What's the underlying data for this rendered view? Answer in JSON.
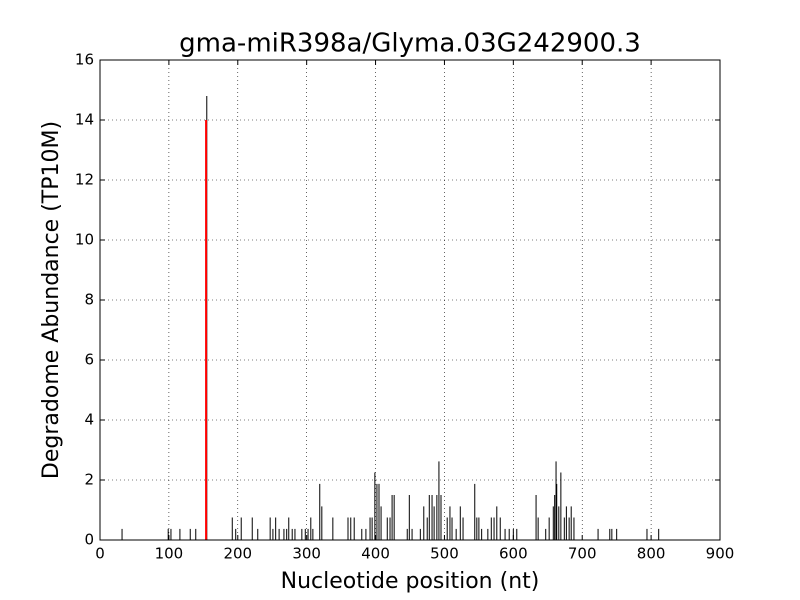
{
  "chart_data": {
    "type": "stem",
    "title": "gma-miR398a/Glyma.03G242900.3",
    "x_label": "Nucleotide position (nt)",
    "y_label": "Degradome Abundance (TP10M)",
    "xlim": [
      0,
      900
    ],
    "xticks": [
      0,
      100,
      200,
      300,
      400,
      500,
      600,
      700,
      800,
      900
    ],
    "ylim": [
      0,
      16
    ],
    "yticks": [
      0,
      2,
      4,
      6,
      8,
      10,
      12,
      14,
      16
    ],
    "grid": true,
    "series": [
      {
        "color": "#000000",
        "x": [
          32,
          99,
          103,
          116,
          131,
          139,
          155,
          192,
          197,
          205,
          221,
          229,
          247,
          251,
          255,
          260,
          267,
          271,
          274,
          279,
          283,
          293,
          298,
          302,
          306,
          309,
          319,
          322,
          338,
          360,
          364,
          369,
          380,
          386,
          392,
          395,
          399,
          402,
          405,
          408,
          417,
          421,
          424,
          427,
          446,
          449,
          453,
          465,
          470,
          475,
          478,
          482,
          485,
          489,
          492,
          495,
          504,
          508,
          511,
          517,
          523,
          527,
          544,
          547,
          550,
          554,
          563,
          568,
          572,
          576,
          581,
          588,
          594,
          600,
          605,
          633,
          636,
          647,
          652,
          658,
          660,
          662,
          663,
          666,
          669,
          674,
          677,
          681,
          684,
          688,
          723,
          740,
          743,
          750,
          794,
          811
        ],
        "values": [
          0.37,
          0.37,
          0.37,
          0.37,
          0.37,
          0.37,
          14.8,
          0.75,
          0.37,
          0.75,
          0.75,
          0.37,
          0.75,
          0.37,
          0.75,
          0.37,
          0.37,
          0.37,
          0.75,
          0.37,
          0.37,
          0.37,
          0.37,
          0.37,
          0.75,
          0.37,
          1.87,
          1.12,
          0.75,
          0.75,
          0.75,
          0.75,
          0.37,
          0.37,
          0.75,
          0.75,
          2.25,
          1.87,
          1.87,
          1.12,
          0.75,
          0.75,
          1.5,
          1.5,
          0.37,
          1.5,
          0.37,
          0.37,
          1.12,
          0.75,
          1.5,
          1.5,
          1.12,
          1.5,
          2.62,
          1.5,
          0.75,
          1.12,
          0.75,
          0.37,
          1.12,
          0.75,
          1.87,
          0.75,
          0.75,
          0.37,
          0.37,
          0.75,
          0.75,
          1.12,
          0.75,
          0.37,
          0.37,
          0.37,
          0.37,
          1.5,
          0.75,
          0.37,
          0.75,
          1.12,
          1.5,
          2.62,
          1.87,
          1.12,
          2.25,
          0.75,
          1.12,
          0.75,
          1.12,
          0.75,
          0.37,
          0.37,
          0.37,
          0.37,
          0.37,
          0.37
        ]
      },
      {
        "color": "#ff0000",
        "x": [
          154
        ],
        "values": [
          14
        ]
      }
    ]
  }
}
